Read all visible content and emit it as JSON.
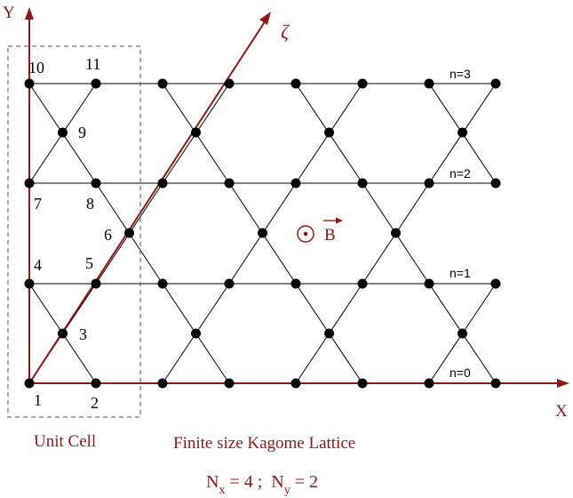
{
  "axes": {
    "y_label": "Y",
    "x_label": "X",
    "zeta_label": "ζ"
  },
  "site_labels": [
    "1",
    "2",
    "3",
    "4",
    "5",
    "6",
    "7",
    "8",
    "9",
    "10",
    "11"
  ],
  "row_labels": [
    "n=0",
    "n=1",
    "n=2",
    "n=3"
  ],
  "field": {
    "symbol": "B"
  },
  "unit_cell_label": "Unit Cell",
  "title": "Finite size Kagome Lattice",
  "size_formula": {
    "nx_sym": "N",
    "nx_sub": "x",
    "nx_eq": " = 4 ;  ",
    "ny_sym": "N",
    "ny_sub": "y",
    "ny_eq": " = 2"
  },
  "colors": {
    "axis": "#8b1a1a",
    "lattice_line": "#000000",
    "site": "#000000",
    "unit_cell_border": "#555555"
  }
}
